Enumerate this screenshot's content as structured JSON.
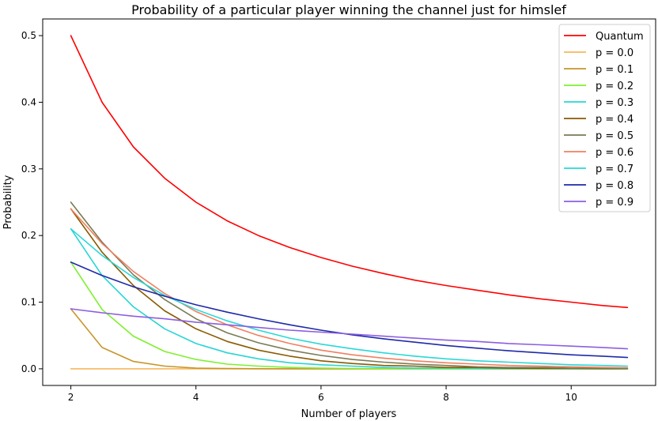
{
  "chart_data": {
    "type": "line",
    "title": "Probability of a particular player winning the channel just for himslef",
    "xlabel": "Number of players",
    "ylabel": "Probability",
    "xlim": [
      1.55,
      11.35
    ],
    "ylim": [
      -0.025,
      0.525
    ],
    "xticks": [
      2,
      4,
      6,
      8,
      10
    ],
    "yticks": [
      0.0,
      0.1,
      0.2,
      0.3,
      0.4,
      0.5
    ],
    "xtick_labels": [
      "2",
      "4",
      "6",
      "8",
      "10"
    ],
    "ytick_labels": [
      "0.0",
      "0.1",
      "0.2",
      "0.3",
      "0.4",
      "0.5"
    ],
    "x": [
      2,
      2.5,
      3,
      3.5,
      4,
      4.5,
      5,
      5.5,
      6,
      6.5,
      7,
      7.5,
      8,
      8.5,
      9,
      9.5,
      10,
      10.5,
      10.9
    ],
    "legend": {
      "placement": "top-right"
    },
    "grid": false,
    "series": [
      {
        "name": "Quantum",
        "color": "#ff0000",
        "values": [
          0.5,
          0.4,
          0.333,
          0.286,
          0.25,
          0.222,
          0.2,
          0.182,
          0.167,
          0.154,
          0.143,
          0.133,
          0.125,
          0.118,
          0.111,
          0.105,
          0.1,
          0.095,
          0.092
        ]
      },
      {
        "name": "p = 0.0",
        "color": "#f5b85c",
        "values": [
          0,
          0,
          0,
          0,
          0,
          0,
          0,
          0,
          0,
          0,
          0,
          0,
          0,
          0,
          0,
          0,
          0,
          0,
          0
        ]
      },
      {
        "name": "p = 0.1",
        "color": "#c8952a",
        "values": [
          0.09,
          0.032,
          0.011,
          0.004,
          0.001,
          0.0004,
          0.0001,
          0,
          0,
          0,
          0,
          0,
          0,
          0,
          0,
          0,
          0,
          0,
          0
        ]
      },
      {
        "name": "p = 0.2",
        "color": "#7ff02e",
        "values": [
          0.16,
          0.089,
          0.049,
          0.026,
          0.014,
          0.007,
          0.004,
          0.002,
          0.001,
          0.0005,
          0.0003,
          0.0001,
          0,
          0,
          0,
          0,
          0,
          0,
          0
        ]
      },
      {
        "name": "p = 0.3",
        "color": "#2ad4d4",
        "values": [
          0.21,
          0.14,
          0.093,
          0.06,
          0.038,
          0.024,
          0.015,
          0.009,
          0.006,
          0.004,
          0.002,
          0.001,
          0.001,
          0.0005,
          0.0003,
          0.0002,
          0.0001,
          0,
          0
        ]
      },
      {
        "name": "p = 0.4",
        "color": "#8a5a00",
        "values": [
          0.24,
          0.175,
          0.125,
          0.087,
          0.06,
          0.041,
          0.028,
          0.019,
          0.012,
          0.008,
          0.005,
          0.004,
          0.002,
          0.002,
          0.001,
          0.0007,
          0.0005,
          0.0003,
          0.0002
        ]
      },
      {
        "name": "p = 0.5",
        "color": "#7a7a55",
        "values": [
          0.25,
          0.19,
          0.141,
          0.104,
          0.075,
          0.054,
          0.039,
          0.028,
          0.02,
          0.014,
          0.01,
          0.007,
          0.005,
          0.003,
          0.002,
          0.002,
          0.001,
          0.001,
          0.0006
        ]
      },
      {
        "name": "p = 0.6",
        "color": "#f08060",
        "values": [
          0.24,
          0.188,
          0.146,
          0.113,
          0.086,
          0.066,
          0.05,
          0.038,
          0.028,
          0.021,
          0.016,
          0.012,
          0.009,
          0.007,
          0.005,
          0.004,
          0.003,
          0.002,
          0.0017
        ]
      },
      {
        "name": "p = 0.7",
        "color": "#2ad8d8",
        "values": [
          0.21,
          0.17,
          0.137,
          0.11,
          0.089,
          0.072,
          0.058,
          0.046,
          0.037,
          0.03,
          0.024,
          0.019,
          0.015,
          0.012,
          0.01,
          0.008,
          0.006,
          0.005,
          0.004
        ]
      },
      {
        "name": "p = 0.8",
        "color": "#1f2aa8",
        "values": [
          0.16,
          0.14,
          0.123,
          0.109,
          0.096,
          0.085,
          0.075,
          0.066,
          0.058,
          0.051,
          0.045,
          0.04,
          0.035,
          0.031,
          0.027,
          0.024,
          0.021,
          0.019,
          0.017
        ]
      },
      {
        "name": "p = 0.9",
        "color": "#8c5ee0",
        "values": [
          0.09,
          0.084,
          0.079,
          0.075,
          0.07,
          0.066,
          0.062,
          0.058,
          0.055,
          0.052,
          0.049,
          0.046,
          0.043,
          0.041,
          0.038,
          0.036,
          0.034,
          0.032,
          0.03
        ]
      }
    ]
  }
}
